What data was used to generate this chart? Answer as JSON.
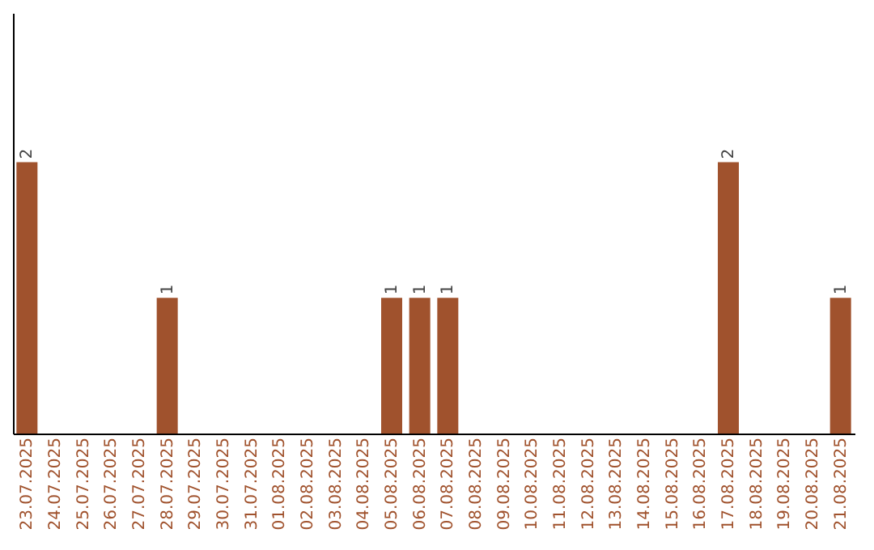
{
  "chart_data": {
    "type": "bar",
    "categories": [
      "23.07.2025",
      "24.07.2025",
      "25.07.2025",
      "26.07.2025",
      "27.07.2025",
      "28.07.2025",
      "29.07.2025",
      "30.07.2025",
      "31.07.2025",
      "01.08.2025",
      "02.08.2025",
      "03.08.2025",
      "04.08.2025",
      "05.08.2025",
      "06.08.2025",
      "07.08.2025",
      "08.08.2025",
      "09.08.2025",
      "10.08.2025",
      "11.08.2025",
      "12.08.2025",
      "13.08.2025",
      "14.08.2025",
      "15.08.2025",
      "16.08.2025",
      "17.08.2025",
      "18.08.2025",
      "19.08.2025",
      "20.08.2025",
      "21.08.2025"
    ],
    "values": [
      2,
      0,
      0,
      0,
      0,
      1,
      0,
      0,
      0,
      0,
      0,
      0,
      0,
      1,
      1,
      1,
      0,
      0,
      0,
      0,
      0,
      0,
      0,
      0,
      0,
      2,
      0,
      0,
      0,
      1
    ],
    "value_labels": [
      "2",
      null,
      null,
      null,
      null,
      "1",
      null,
      null,
      null,
      null,
      null,
      null,
      null,
      "1",
      "1",
      "1",
      null,
      null,
      null,
      null,
      null,
      null,
      null,
      null,
      null,
      "2",
      null,
      null,
      null,
      "1"
    ],
    "color": "#a0522d",
    "ylim": [
      0,
      3.1
    ],
    "tick_labels": "x",
    "grid": false
  }
}
